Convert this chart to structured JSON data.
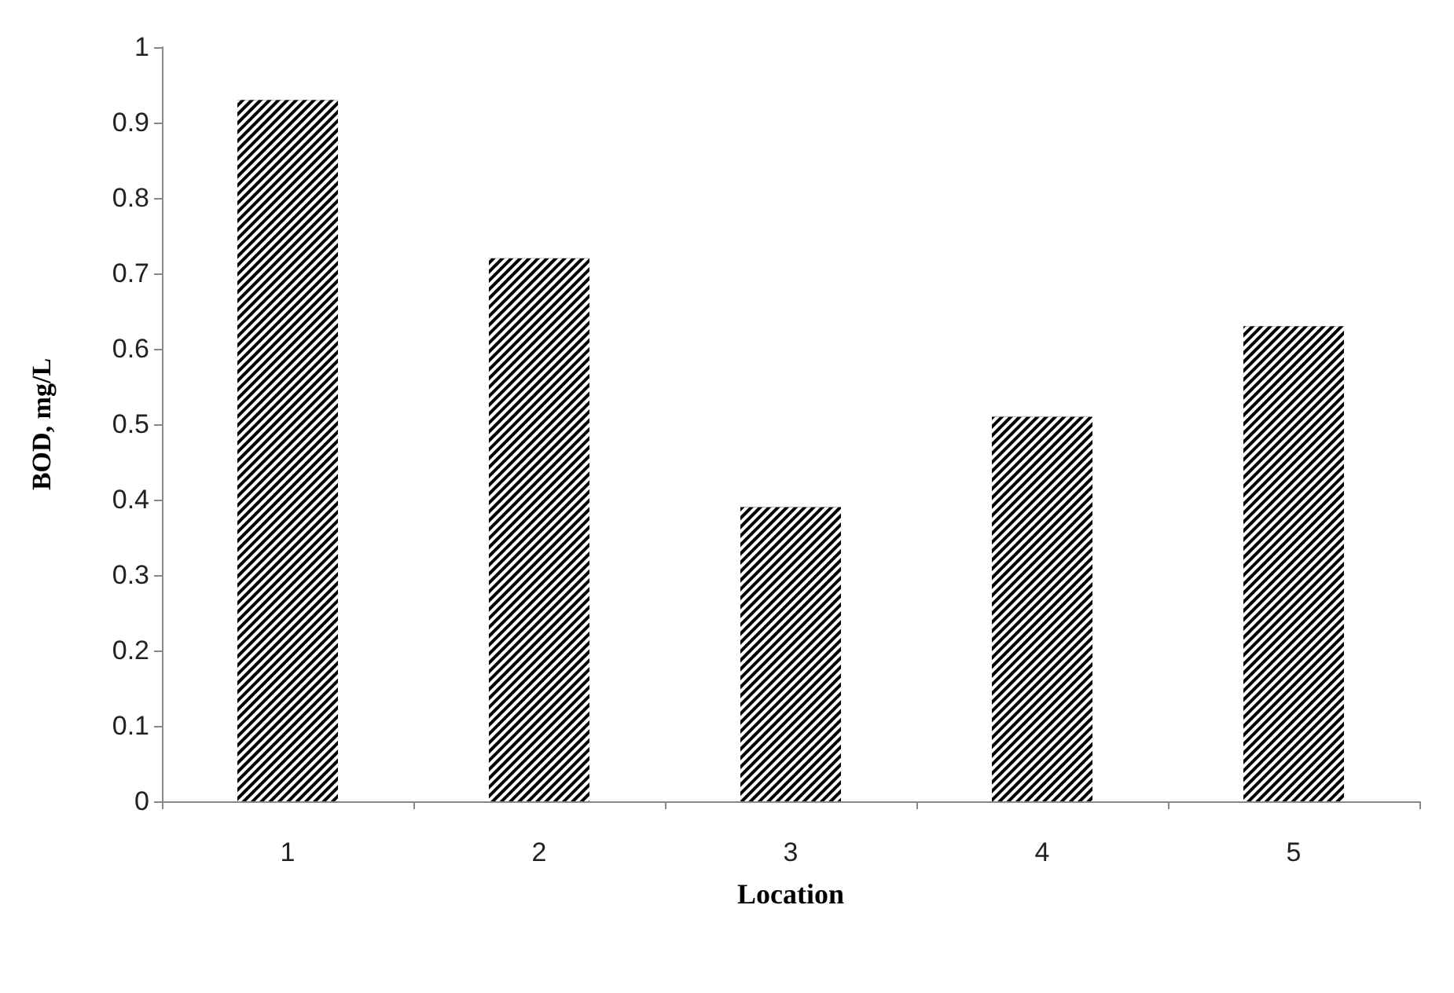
{
  "chart_data": {
    "type": "bar",
    "xlabel": "Location",
    "ylabel": "BOD, mg/L",
    "categories": [
      "1",
      "2",
      "3",
      "4",
      "5"
    ],
    "values": [
      0.93,
      0.72,
      0.39,
      0.51,
      0.63
    ],
    "color": "#000000",
    "ylim": [
      0,
      1
    ],
    "yticks": [
      0,
      0.1,
      0.2,
      0.3,
      0.4,
      0.5,
      0.6,
      0.7,
      0.8,
      0.9,
      1
    ],
    "grid": false
  }
}
